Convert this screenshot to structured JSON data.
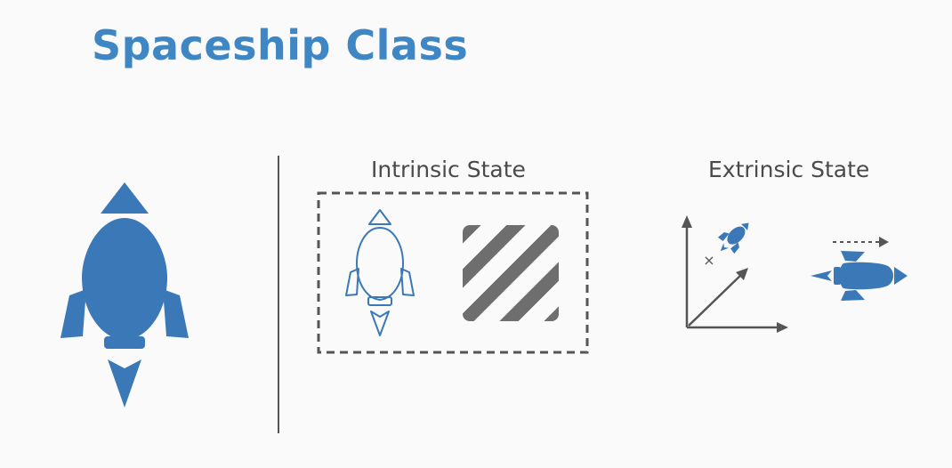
{
  "title": "Spaceship Class",
  "intrinsic": {
    "label": "Intrinsic State"
  },
  "extrinsic": {
    "label": "Extrinsic State",
    "marker": "×"
  },
  "colors": {
    "brand_blue": "#3f86c4",
    "ship_blue": "#3b78b8",
    "gray": "#555555",
    "stripe_gray": "#6e6e6e",
    "background": "#fafafa"
  }
}
